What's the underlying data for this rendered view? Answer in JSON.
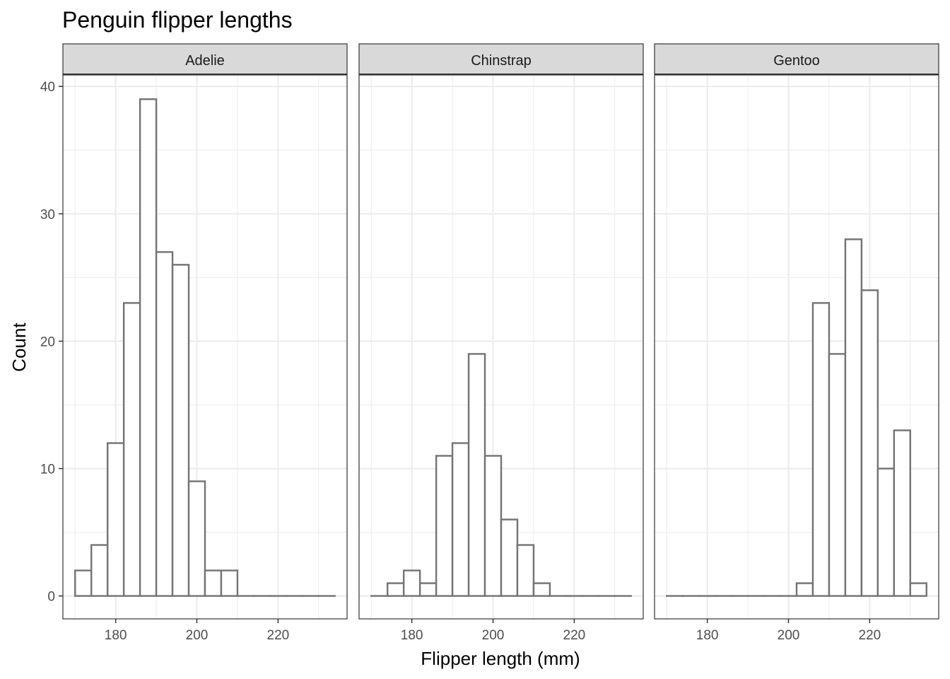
{
  "chart_data": {
    "type": "bar",
    "subtype": "faceted-histogram",
    "title": "Penguin flipper lengths",
    "xlabel": "Flipper length (mm)",
    "ylabel": "Count",
    "bin_edges": [
      170,
      174,
      178,
      182,
      186,
      190,
      194,
      198,
      202,
      206,
      210,
      214,
      218,
      222,
      226,
      230,
      234
    ],
    "xlim": [
      167,
      237
    ],
    "ylim": [
      -1.8,
      40.9
    ],
    "x_ticks": [
      180,
      200,
      220
    ],
    "y_ticks": [
      0,
      10,
      20,
      30,
      40
    ],
    "grid": true,
    "legend": "none",
    "colors": {
      "bar_outline": "#737373",
      "bar_fill": "#ffffff",
      "strip_fill": "#d9d9d9",
      "grid": "#ebebeb"
    },
    "facets": [
      {
        "name": "Adelie",
        "values": [
          2,
          4,
          12,
          23,
          39,
          27,
          26,
          9,
          2,
          2,
          0,
          0,
          0,
          0,
          0,
          0
        ]
      },
      {
        "name": "Chinstrap",
        "values": [
          0,
          1,
          2,
          1,
          11,
          12,
          19,
          11,
          6,
          4,
          1,
          0,
          0,
          0,
          0,
          0
        ]
      },
      {
        "name": "Gentoo",
        "values": [
          0,
          0,
          0,
          0,
          0,
          0,
          0,
          0,
          1,
          23,
          19,
          28,
          24,
          10,
          13,
          1
        ]
      }
    ]
  }
}
